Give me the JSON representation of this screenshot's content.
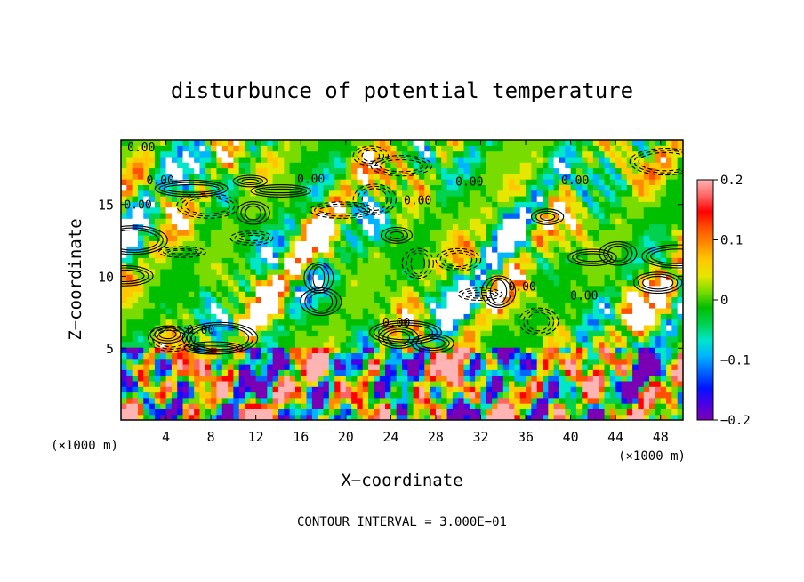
{
  "chart_data": {
    "type": "heatmap",
    "title": "disturbunce of potential temperature",
    "xlabel": "X−coordinate",
    "ylabel": "Z−coordinate",
    "x_unit_left": "(×1000 m)",
    "x_unit_right": "(×1000 m)",
    "footer": "CONTOUR INTERVAL = 3.000E−01",
    "xlim": [
      0,
      50
    ],
    "ylim": [
      0,
      19.5
    ],
    "x_ticks": [
      4,
      8,
      12,
      16,
      20,
      24,
      28,
      32,
      36,
      40,
      44,
      48
    ],
    "y_ticks": [
      5,
      10,
      15
    ],
    "colorbar": {
      "range": [
        -0.2,
        0.2
      ],
      "tick_values": [
        0.2,
        0.1,
        0,
        -0.1,
        -0.2
      ],
      "tick_labels": [
        "0.2",
        "0.1",
        "0",
        "−0.1",
        "−0.2"
      ],
      "colors": [
        "#7a00b4",
        "#4b00e6",
        "#0014ff",
        "#0064ff",
        "#00b4ff",
        "#00e6c8",
        "#00d250",
        "#00be00",
        "#78dc00",
        "#e6e600",
        "#ffc800",
        "#ff8c00",
        "#ff5000",
        "#ff0000",
        "#ff6464",
        "#ffb4b4"
      ]
    },
    "contour_labels": [
      {
        "text": "0.00",
        "x": 1.8,
        "y": 18.7
      },
      {
        "text": "0.00",
        "x": 3.5,
        "y": 16.4
      },
      {
        "text": "0.00",
        "x": 1.5,
        "y": 14.7
      },
      {
        "text": "0.00",
        "x": 16.9,
        "y": 16.5
      },
      {
        "text": "0.00",
        "x": 26.4,
        "y": 15.0
      },
      {
        "text": "0.00",
        "x": 31.0,
        "y": 16.3
      },
      {
        "text": "0.00",
        "x": 40.4,
        "y": 16.4
      },
      {
        "text": "0.00",
        "x": 35.7,
        "y": 9.0
      },
      {
        "text": "0.00",
        "x": 41.2,
        "y": 8.4
      },
      {
        "text": "0.00",
        "x": 24.5,
        "y": 6.5
      },
      {
        "text": "0.00",
        "x": 7.1,
        "y": 6.0
      }
    ]
  }
}
